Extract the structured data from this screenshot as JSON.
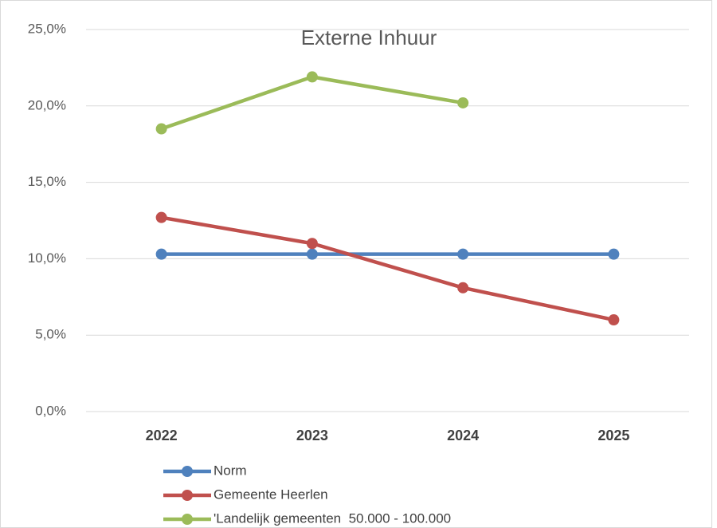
{
  "chart_data": {
    "type": "line",
    "title": "Externe Inhuur",
    "categories": [
      "2022",
      "2023",
      "2024",
      "2025"
    ],
    "series": [
      {
        "name": "Norm",
        "color": "#4f81bd",
        "values": [
          10.3,
          10.3,
          10.3,
          10.3
        ]
      },
      {
        "name": "Gemeente Heerlen",
        "color": "#c0504d",
        "values": [
          12.7,
          11.0,
          8.1,
          6.0
        ]
      },
      {
        "name": "'Landelijk gemeenten  50.000 - 100.000",
        "color": "#9bbb59",
        "values": [
          18.5,
          21.9,
          20.2,
          null
        ]
      }
    ],
    "ylim": [
      0,
      25
    ],
    "yticks": [
      {
        "value": 0,
        "label": "0,0%"
      },
      {
        "value": 5,
        "label": "5,0%"
      },
      {
        "value": 10,
        "label": "10,0%"
      },
      {
        "value": 15,
        "label": "15,0%"
      },
      {
        "value": 20,
        "label": "20,0%"
      },
      {
        "value": 25,
        "label": "25,0%"
      }
    ],
    "grid": true,
    "legend": "bottom"
  }
}
